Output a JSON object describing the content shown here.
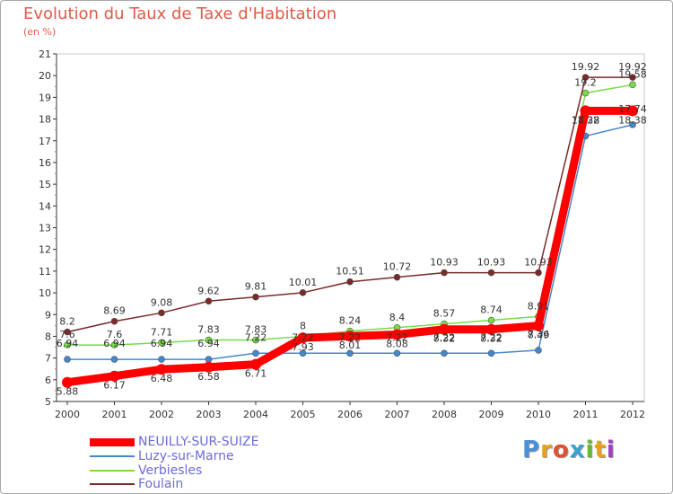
{
  "header": {
    "title": "Evolution du Taux de Taxe d'Habitation",
    "subtitle": "(en %)"
  },
  "chart_data": {
    "type": "line",
    "title": "Evolution du Taux de Taxe d'Habitation",
    "ylabel": "(en %)",
    "xlabel": "",
    "ylim": [
      5,
      21
    ],
    "yticks": [
      5,
      6,
      7,
      8,
      9,
      10,
      11,
      12,
      13,
      14,
      15,
      16,
      17,
      18,
      19,
      20,
      21
    ],
    "x": [
      2000,
      2001,
      2002,
      2003,
      2004,
      2005,
      2006,
      2007,
      2008,
      2009,
      2010,
      2011,
      2012
    ],
    "legend_position": "bottom-left",
    "series": [
      {
        "name": "NEUILLY-SUR-SUIZE",
        "color": "#ff0000",
        "values": [
          5.88,
          6.17,
          6.48,
          6.58,
          6.71,
          7.93,
          8.01,
          8.08,
          8.32,
          8.32,
          8.49,
          18.38,
          18.38
        ],
        "labels": [
          "5.88",
          "6.17",
          "6.48",
          "6.58",
          "6.71",
          "7.93",
          "8.01",
          "8.08",
          "8.32",
          "8.32",
          "8.49",
          "18.38",
          "18.38"
        ]
      },
      {
        "name": "Luzy-sur-Marne",
        "color": "#4488cc",
        "values": [
          6.94,
          6.94,
          6.94,
          6.94,
          7.22,
          7.22,
          7.22,
          7.22,
          7.22,
          7.22,
          7.36,
          17.22,
          17.74
        ],
        "labels": [
          "6.94",
          "6.94",
          "6.94",
          "6.94",
          "7.22",
          "7.22",
          "7.22",
          "7.22",
          "7.22",
          "7.22",
          "7.36",
          "17.22",
          "17.74"
        ]
      },
      {
        "name": "Verbiesles",
        "color": "#77dd44",
        "values": [
          7.6,
          7.6,
          7.71,
          7.83,
          7.83,
          8.0,
          8.24,
          8.4,
          8.57,
          8.74,
          8.91,
          19.2,
          19.58
        ],
        "labels": [
          "7.6",
          "7.6",
          "7.71",
          "7.83",
          "7.83",
          "8",
          "8.24",
          "8.4",
          "8.57",
          "8.74",
          "8.91",
          "19.2",
          "19.58"
        ]
      },
      {
        "name": "Foulain",
        "color": "#7a2a2a",
        "values": [
          8.2,
          8.69,
          9.08,
          9.62,
          9.81,
          10.01,
          10.51,
          10.72,
          10.93,
          10.93,
          10.93,
          19.92,
          19.92
        ],
        "labels": [
          "8.2",
          "8.69",
          "9.08",
          "9.62",
          "9.81",
          "10.01",
          "10.51",
          "10.72",
          "10.93",
          "10.93",
          "10.93",
          "19.92",
          "19.92"
        ]
      }
    ]
  },
  "logo": {
    "letters": [
      "P",
      "r",
      "o",
      "x",
      "i",
      "t",
      "i"
    ],
    "colors": [
      "#4a90d9",
      "#e8a020",
      "#e05030",
      "#3aa0d0",
      "#66bb33",
      "#e8a020",
      "#a040c0"
    ]
  }
}
